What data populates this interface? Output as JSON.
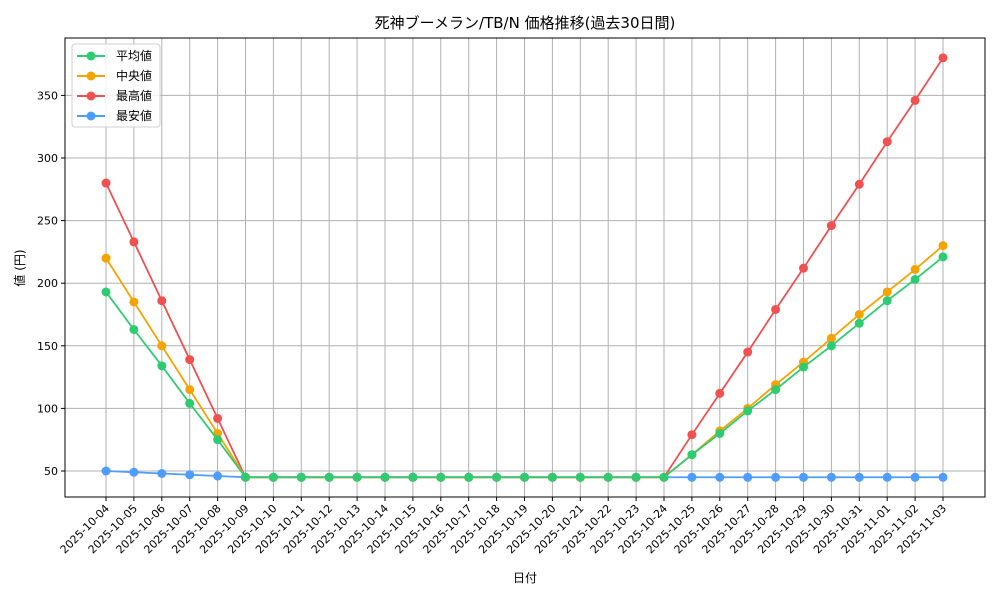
{
  "chart_data": {
    "type": "line",
    "title": "死神ブーメラン/TB/N 価格推移(過去30日間)",
    "xlabel": "日付",
    "ylabel": "値 (円)",
    "ylim": [
      28,
      395
    ],
    "yticks": [
      50,
      100,
      150,
      200,
      250,
      300,
      350
    ],
    "grid": true,
    "legend_position": "upper left",
    "x": [
      "2025-10-04",
      "2025-10-05",
      "2025-10-06",
      "2025-10-07",
      "2025-10-08",
      "2025-10-09",
      "2025-10-10",
      "2025-10-11",
      "2025-10-12",
      "2025-10-13",
      "2025-10-14",
      "2025-10-15",
      "2025-10-16",
      "2025-10-17",
      "2025-10-18",
      "2025-10-19",
      "2025-10-20",
      "2025-10-21",
      "2025-10-22",
      "2025-10-23",
      "2025-10-24",
      "2025-10-25",
      "2025-10-26",
      "2025-10-27",
      "2025-10-28",
      "2025-10-29",
      "2025-10-30",
      "2025-10-31",
      "2025-11-01",
      "2025-11-02",
      "2025-11-03"
    ],
    "series": [
      {
        "name": "平均値",
        "color": "#2ecc71",
        "values": [
          193,
          163,
          134,
          104,
          75,
          45,
          45,
          45,
          45,
          45,
          45,
          45,
          45,
          45,
          45,
          45,
          45,
          45,
          45,
          45,
          45,
          63,
          80,
          98,
          115,
          133,
          150,
          168,
          186,
          203,
          221
        ]
      },
      {
        "name": "中央値",
        "color": "#f5a300",
        "values": [
          220,
          185,
          150,
          115,
          80,
          45,
          45,
          45,
          45,
          45,
          45,
          45,
          45,
          45,
          45,
          45,
          45,
          45,
          45,
          45,
          45,
          63,
          82,
          100,
          119,
          137,
          156,
          175,
          193,
          211,
          230
        ]
      },
      {
        "name": "最高値",
        "color": "#f05050",
        "values": [
          280,
          233,
          186,
          139,
          92,
          45,
          45,
          45,
          45,
          45,
          45,
          45,
          45,
          45,
          45,
          45,
          45,
          45,
          45,
          45,
          45,
          79,
          112,
          145,
          179,
          212,
          246,
          279,
          313,
          346,
          380
        ]
      },
      {
        "name": "最安値",
        "color": "#4d9cff",
        "values": [
          50,
          49,
          48,
          47,
          46,
          45,
          45,
          45,
          45,
          45,
          45,
          45,
          45,
          45,
          45,
          45,
          45,
          45,
          45,
          45,
          45,
          45,
          45,
          45,
          45,
          45,
          45,
          45,
          45,
          45,
          45
        ]
      }
    ]
  }
}
